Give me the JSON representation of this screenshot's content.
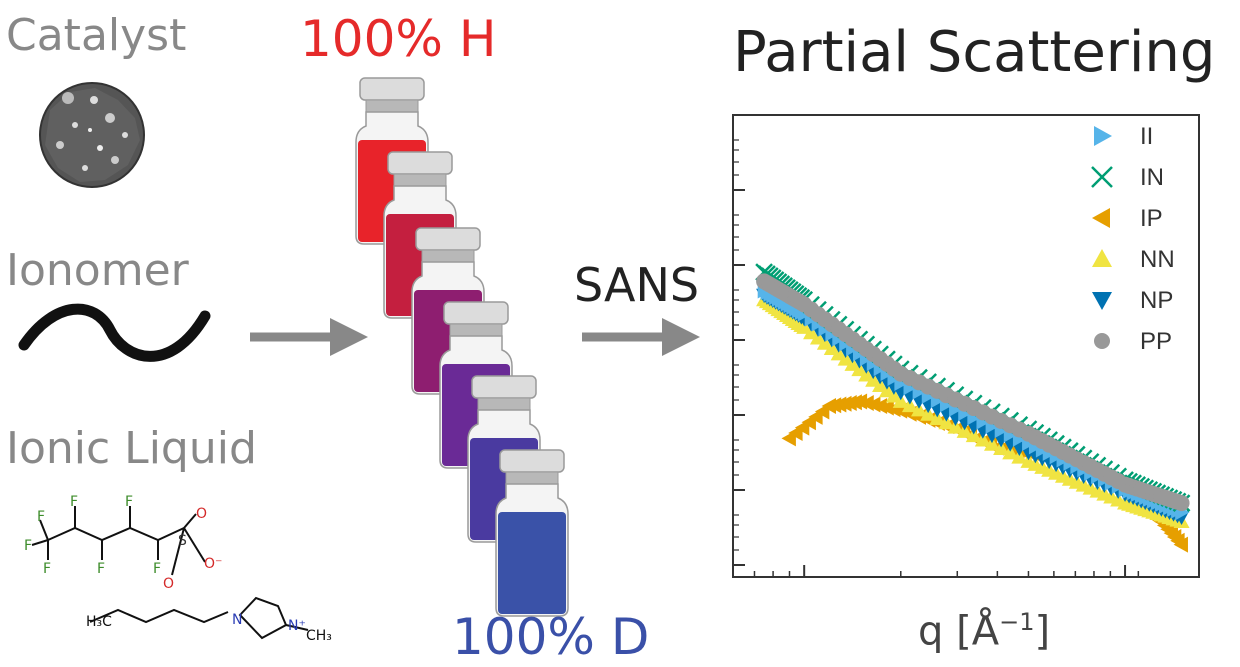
{
  "labels": {
    "catalyst": "Catalyst",
    "ionomer": "Ionomer",
    "ionic_liquid": "Ionic Liquid",
    "top_vial": "100% H",
    "bottom_vial": "100% D",
    "technique": "SANS",
    "title": "Partial Scattering",
    "x_axis": "q [Å",
    "x_axis_exp": "−1",
    "x_axis_close": "]"
  },
  "chemistry": {
    "fluorine": "F",
    "sulfur": "S",
    "oxygen": "O",
    "oxygen_minus": "O⁻",
    "nitrogen": "N",
    "nitrogen_plus": "N⁺",
    "methyl": "CH₃",
    "butyl_end": "H₃C"
  },
  "colors": {
    "catalyst_label": "#888888",
    "h_label": "#e52a2a",
    "d_label": "#3a50a8",
    "vials": [
      "#e8232a",
      "#c41f3f",
      "#8e1e70",
      "#6a2a96",
      "#4a3aa0",
      "#3a52a8"
    ],
    "fluorine": "#3c8c2a",
    "oxygen": "#d42a2a",
    "nitrogen": "#2a3cb4"
  },
  "chart_data": {
    "type": "scatter",
    "x_scale": "log",
    "y_scale": "log",
    "xlabel": "q [Å⁻¹]",
    "ylabel": "",
    "legend_position": "top-right",
    "series": [
      {
        "name": "II",
        "marker": "triangle-right",
        "color": "#56b4e9",
        "points": [
          [
            0.0075,
            0.62
          ],
          [
            0.01,
            0.57
          ],
          [
            0.02,
            0.42
          ],
          [
            0.05,
            0.29
          ],
          [
            0.1,
            0.19
          ],
          [
            0.15,
            0.14
          ]
        ]
      },
      {
        "name": "IN",
        "marker": "x",
        "color": "#009e73",
        "points": [
          [
            0.0075,
            0.66
          ],
          [
            0.01,
            0.6
          ],
          [
            0.02,
            0.45
          ],
          [
            0.05,
            0.32
          ],
          [
            0.1,
            0.21
          ],
          [
            0.15,
            0.16
          ]
        ]
      },
      {
        "name": "IP",
        "marker": "triangle-left",
        "color": "#e69f00",
        "points": [
          [
            0.009,
            0.3
          ],
          [
            0.012,
            0.37
          ],
          [
            0.015,
            0.38
          ],
          [
            0.02,
            0.36
          ],
          [
            0.03,
            0.32
          ],
          [
            0.04,
            0.28
          ],
          [
            0.05,
            0.27
          ],
          [
            0.06,
            0.26
          ],
          [
            0.08,
            0.23
          ],
          [
            0.12,
            0.14
          ],
          [
            0.13,
            0.12
          ],
          [
            0.15,
            0.07
          ]
        ]
      },
      {
        "name": "NN",
        "marker": "triangle-up",
        "color": "#f0e442",
        "points": [
          [
            0.0075,
            0.6
          ],
          [
            0.01,
            0.54
          ],
          [
            0.02,
            0.38
          ],
          [
            0.05,
            0.25
          ],
          [
            0.1,
            0.16
          ],
          [
            0.15,
            0.12
          ]
        ]
      },
      {
        "name": "NP",
        "marker": "triangle-down",
        "color": "#0072b2",
        "points": [
          [
            0.0075,
            0.61
          ],
          [
            0.01,
            0.56
          ],
          [
            0.02,
            0.4
          ],
          [
            0.05,
            0.27
          ],
          [
            0.1,
            0.18
          ],
          [
            0.15,
            0.13
          ]
        ]
      },
      {
        "name": "PP",
        "marker": "circle",
        "color": "#999999",
        "points": [
          [
            0.0075,
            0.64
          ],
          [
            0.01,
            0.59
          ],
          [
            0.02,
            0.44
          ],
          [
            0.05,
            0.31
          ],
          [
            0.1,
            0.2
          ],
          [
            0.15,
            0.16
          ]
        ]
      }
    ]
  }
}
